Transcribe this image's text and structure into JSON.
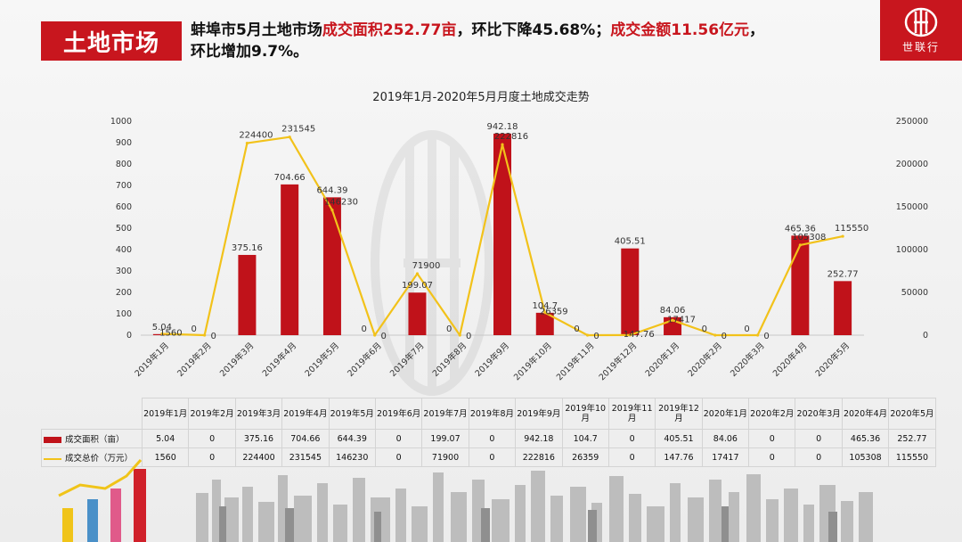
{
  "tag": "土地市场",
  "headline": {
    "p1": "蚌埠市5月土地市场",
    "p2": "成交面积252.77亩",
    "p3": "，环比下降45.68%；",
    "p4": "成交金额11.56亿元",
    "p5": "，",
    "p6": "环比增加9.7%。"
  },
  "logo": {
    "text": "世联行"
  },
  "colors": {
    "accent": "#c8161e",
    "bar": "#c0121a",
    "line": "#f2c21a"
  },
  "chart_data": {
    "type": "bar",
    "title": "2019年1月-2020年5月月度土地成交走势",
    "categories": [
      "2019年1月",
      "2019年2月",
      "2019年3月",
      "2019年4月",
      "2019年5月",
      "2019年6月",
      "2019年7月",
      "2019年8月",
      "2019年9月",
      "2019年10月",
      "2019年11月",
      "2019年12月",
      "2020年1月",
      "2020年2月",
      "2020年3月",
      "2020年4月",
      "2020年5月"
    ],
    "series": [
      {
        "name": "成交面积（亩）",
        "kind": "bar",
        "axis": "left",
        "values": [
          5.04,
          0,
          375.16,
          704.66,
          644.39,
          0,
          199.07,
          0,
          942.18,
          104.7,
          0,
          405.51,
          84.06,
          0,
          0,
          465.36,
          252.77
        ]
      },
      {
        "name": "成交总价（万元）",
        "kind": "line",
        "axis": "right",
        "values": [
          1560,
          0,
          224400,
          231545,
          146230,
          0,
          71900,
          0,
          222816,
          26359,
          0,
          147.76,
          17417,
          0,
          0,
          105308,
          115550
        ]
      }
    ],
    "bar_labels": [
      "5.04",
      "0",
      "375.16",
      "704.66",
      "644.39",
      "0",
      "199.07",
      "0",
      "942.18",
      "104.7",
      "0",
      "405.51",
      "84.06",
      "0",
      "0",
      "465.36",
      "252.77"
    ],
    "line_labels": [
      "1560",
      "0",
      "224400",
      "231545",
      "146230",
      "0",
      "71900",
      "0",
      "222816",
      "26359",
      "0",
      "147.76",
      "17417",
      "0",
      "0",
      "105308",
      "115550"
    ],
    "y_left": {
      "range": [
        0,
        1000
      ],
      "ticks": [
        "0",
        "100",
        "200",
        "300",
        "400",
        "500",
        "600",
        "700",
        "800",
        "900",
        "1000"
      ]
    },
    "y_right": {
      "range": [
        0,
        250000
      ],
      "ticks": [
        "0",
        "50000",
        "100000",
        "150000",
        "200000",
        "250000"
      ]
    },
    "grid": false
  },
  "table": {
    "headers": [
      [
        "2019年1月"
      ],
      [
        "2019年2月"
      ],
      [
        "2019年3月"
      ],
      [
        "2019年4月"
      ],
      [
        "2019年5月"
      ],
      [
        "2019年6月"
      ],
      [
        "2019年7月"
      ],
      [
        "2019年8月"
      ],
      [
        "2019年9月"
      ],
      [
        "2019年10",
        "月"
      ],
      [
        "2019年11",
        "月"
      ],
      [
        "2019年12",
        "月"
      ],
      [
        "2020年1月"
      ],
      [
        "2020年2月"
      ],
      [
        "2020年3月"
      ],
      [
        "2020年4月"
      ],
      [
        "2020年5月"
      ]
    ],
    "rows": [
      {
        "label": "成交面积（亩）",
        "values": [
          "5.04",
          "0",
          "375.16",
          "704.66",
          "644.39",
          "0",
          "199.07",
          "0",
          "942.18",
          "104.7",
          "0",
          "405.51",
          "84.06",
          "0",
          "0",
          "465.36",
          "252.77"
        ]
      },
      {
        "label": "成交总价（万元）",
        "values": [
          "1560",
          "0",
          "224400",
          "231545",
          "146230",
          "0",
          "71900",
          "0",
          "222816",
          "26359",
          "0",
          "147.76",
          "17417",
          "0",
          "0",
          "105308",
          "115550"
        ]
      }
    ]
  }
}
